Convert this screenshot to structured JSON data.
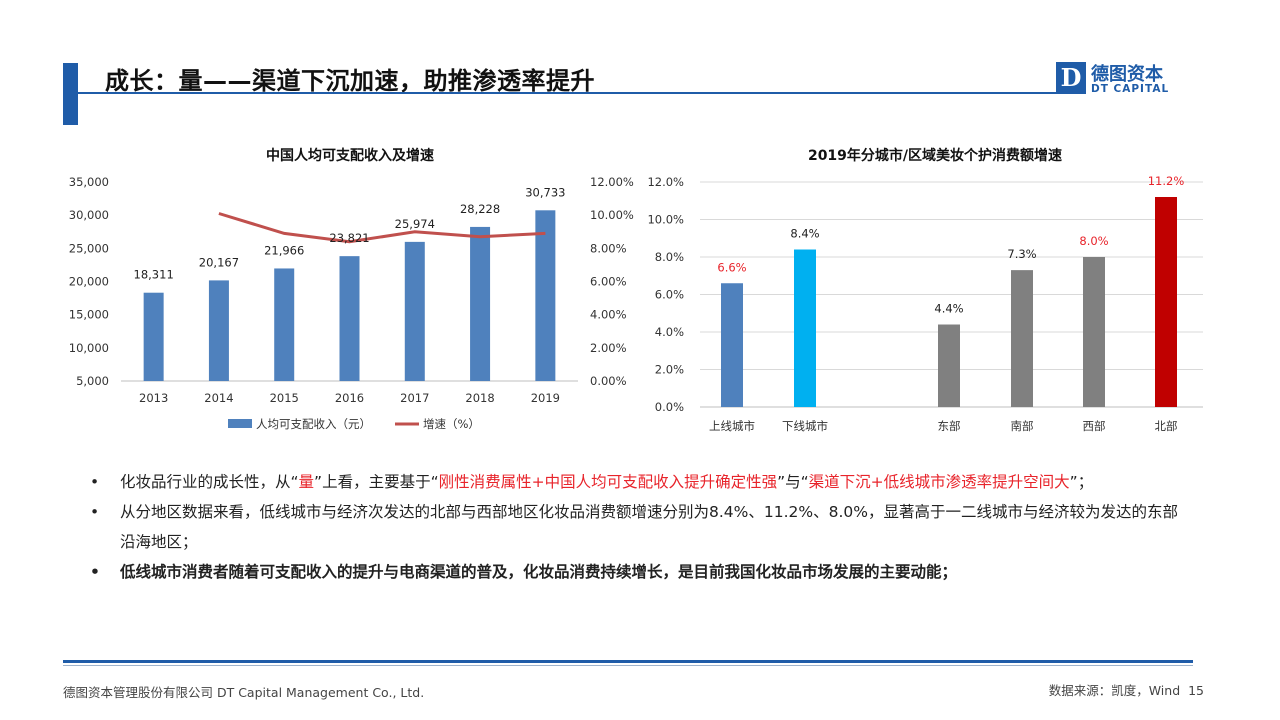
{
  "header": {
    "title": "成长：量——渠道下沉加速，助推渗透率提升",
    "logo_cn": "德图资本",
    "logo_en": "DT CAPITAL",
    "logo_mark": "D"
  },
  "chart_data": [
    {
      "type": "bar",
      "title": "中国人均可支配收入及增速",
      "categories": [
        "2013",
        "2014",
        "2015",
        "2016",
        "2017",
        "2018",
        "2019"
      ],
      "series": [
        {
          "name": "人均可支配收入（元）",
          "type": "bar",
          "axis": "left",
          "color": "#4f81bd",
          "values": [
            18311,
            20167,
            21966,
            23821,
            25974,
            28228,
            30733
          ],
          "labels": [
            "18,311",
            "20,167",
            "21,966",
            "23,821",
            "25,974",
            "28,228",
            "30,733"
          ]
        },
        {
          "name": "增速（%）",
          "type": "line",
          "axis": "right",
          "color": "#c0504d",
          "values": [
            null,
            10.1,
            8.9,
            8.4,
            9.0,
            8.7,
            8.9
          ]
        }
      ],
      "ylim_left": [
        5000,
        35000
      ],
      "ylim_right": [
        0,
        12
      ],
      "y_ticks_left": [
        "35,000",
        "30,000",
        "25,000",
        "20,000",
        "15,000",
        "10,000",
        "5,000"
      ],
      "y_ticks_right": [
        "12.00%",
        "10.00%",
        "8.00%",
        "6.00%",
        "4.00%",
        "2.00%",
        "0.00%"
      ],
      "legend": "bottom",
      "grid": false
    },
    {
      "type": "bar",
      "title": "2019年分城市/区域美妆个护消费额增速",
      "categories": [
        "上线城市",
        "下线城市",
        "东部",
        "南部",
        "西部",
        "北部"
      ],
      "values": [
        6.6,
        8.4,
        4.4,
        7.3,
        8.0,
        11.2
      ],
      "labels": [
        "6.6%",
        "8.4%",
        "4.4%",
        "7.3%",
        "8.0%",
        "11.2%"
      ],
      "bar_colors": [
        "#4f81bd",
        "#00b0f0",
        "#808080",
        "#808080",
        "#808080",
        "#c00000"
      ],
      "label_colors": [
        "#e8242b",
        "#222222",
        "#222222",
        "#222222",
        "#e8242b",
        "#e8242b"
      ],
      "ylim": [
        0,
        12
      ],
      "y_ticks": [
        "12.0%",
        "10.0%",
        "8.0%",
        "6.0%",
        "4.0%",
        "2.0%",
        "0.0%"
      ],
      "grid": true
    }
  ],
  "bullets": {
    "b1": {
      "p1": "化妆品行业的成长性，从“",
      "r1": "量",
      "p2": "”上看，主要基于“",
      "r2": "刚性消费属性+中国人均可支配收入提升确定性强",
      "p3": "”与“",
      "r3": "渠道下沉+低线城市渗透率提升空间大",
      "p4": "”；"
    },
    "b2": "从分地区数据来看，低线城市与经济次发达的北部与西部地区化妆品消费额增速分别为8.4%、11.2%、8.0%，显著高于一二线城市与经济较为发达的东部沿海地区；",
    "b3": "低线城市消费者随着可支配收入的提升与电商渠道的普及，化妆品消费持续增长，是目前我国化妆品市场发展的主要动能；",
    "dot": "•"
  },
  "footer": {
    "company": "德图资本管理股份有限公司 DT Capital Management Co., Ltd.",
    "source": "数据来源：凯度，Wind",
    "page": "15"
  }
}
